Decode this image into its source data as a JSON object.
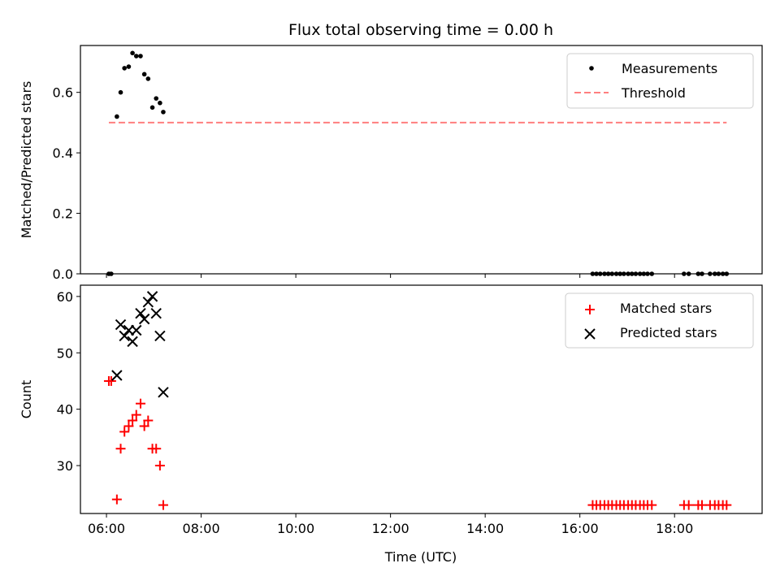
{
  "chart_data": {
    "title": "Flux total observing time = 0.00 h",
    "xlabel": "Time (UTC)",
    "x_tick_labels": [
      "06:00",
      "08:00",
      "10:00",
      "12:00",
      "14:00",
      "16:00",
      "18:00"
    ],
    "x_ticks_hours": [
      6,
      8,
      10,
      12,
      14,
      16,
      18
    ],
    "xlim_hours": [
      5.45,
      19.85
    ],
    "panels": [
      {
        "type": "scatter",
        "ylabel": "Matched/Predicted stars",
        "ylim": [
          0,
          0.755
        ],
        "y_ticks": [
          0.0,
          0.2,
          0.4,
          0.6
        ],
        "y_tick_labels": [
          "0.0",
          "0.2",
          "0.4",
          "0.6"
        ],
        "legend_position": "top-right",
        "series": [
          {
            "name": "Measurements",
            "marker": "dot",
            "color": "#000000",
            "x": [
              6.05,
              6.1,
              6.22,
              6.3,
              6.38,
              6.47,
              6.55,
              6.63,
              6.72,
              6.8,
              6.88,
              6.97,
              7.05,
              7.13,
              7.2,
              16.27,
              16.35,
              16.43,
              16.52,
              16.6,
              16.68,
              16.77,
              16.85,
              16.93,
              17.02,
              17.1,
              17.18,
              17.27,
              17.35,
              17.43,
              17.52,
              18.2,
              18.3,
              18.5,
              18.58,
              18.75,
              18.85,
              18.93,
              19.02,
              19.1
            ],
            "y": [
              0.0,
              0.0,
              0.52,
              0.6,
              0.68,
              0.685,
              0.73,
              0.72,
              0.72,
              0.66,
              0.645,
              0.55,
              0.58,
              0.565,
              0.535,
              0.0,
              0.0,
              0.0,
              0.0,
              0.0,
              0.0,
              0.0,
              0.0,
              0.0,
              0.0,
              0.0,
              0.0,
              0.0,
              0.0,
              0.0,
              0.0,
              0.0,
              0.0,
              0.0,
              0.0,
              0.0,
              0.0,
              0.0,
              0.0,
              0.0
            ]
          },
          {
            "name": "Threshold",
            "marker": "dashed-line",
            "color": "#ff7f7f",
            "x": [
              6.05,
              19.1
            ],
            "y": [
              0.5,
              0.5
            ]
          }
        ]
      },
      {
        "type": "scatter",
        "ylabel": "Count",
        "ylim": [
          21.5,
          62
        ],
        "y_ticks": [
          30,
          40,
          50,
          60
        ],
        "y_tick_labels": [
          "30",
          "40",
          "50",
          "60"
        ],
        "legend_position": "top-right",
        "series": [
          {
            "name": "Matched stars",
            "marker": "plus",
            "color": "#ff0000",
            "x": [
              6.05,
              6.1,
              6.22,
              6.3,
              6.38,
              6.47,
              6.55,
              6.63,
              6.72,
              6.8,
              6.88,
              6.97,
              7.05,
              7.13,
              7.2,
              16.27,
              16.35,
              16.43,
              16.52,
              16.6,
              16.68,
              16.77,
              16.85,
              16.93,
              17.02,
              17.1,
              17.18,
              17.27,
              17.35,
              17.43,
              17.52,
              18.2,
              18.3,
              18.5,
              18.58,
              18.75,
              18.85,
              18.93,
              19.02,
              19.1
            ],
            "y": [
              45,
              45,
              24,
              33,
              36,
              37,
              38,
              39,
              41,
              37,
              38,
              33,
              33,
              30,
              23,
              23,
              23,
              23,
              23,
              23,
              23,
              23,
              23,
              23,
              23,
              23,
              23,
              23,
              23,
              23,
              23,
              23,
              23,
              23,
              23,
              23,
              23,
              23,
              23,
              23
            ]
          },
          {
            "name": "Predicted stars",
            "marker": "x",
            "color": "#000000",
            "x": [
              6.22,
              6.3,
              6.38,
              6.47,
              6.55,
              6.63,
              6.72,
              6.8,
              6.88,
              6.97,
              7.05,
              7.13,
              7.2
            ],
            "y": [
              46,
              55,
              53,
              54,
              52,
              54,
              57,
              56,
              59,
              60,
              57,
              53,
              43
            ]
          }
        ]
      }
    ]
  }
}
